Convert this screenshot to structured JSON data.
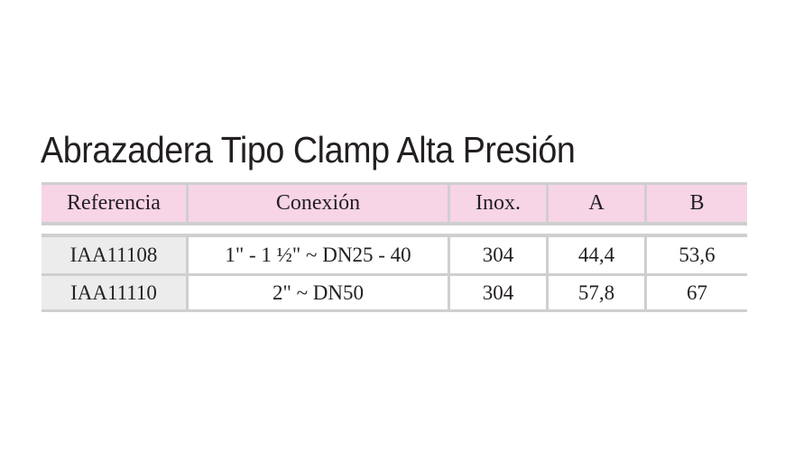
{
  "title": "Abrazadera Tipo Clamp Alta Presión",
  "colors": {
    "header_background": "#f7d4e6",
    "reference_background": "#ececec",
    "border": "#cfcfcf",
    "text": "#231f20"
  },
  "table": {
    "headers": [
      "Referencia",
      "Conexión",
      "Inox.",
      "A",
      "B"
    ],
    "rows": [
      [
        "IAA11108",
        "1\" - 1 ½\" ~ DN25 - 40",
        "304",
        "44,4",
        "53,6"
      ],
      [
        "IAA11110",
        "2\" ~ DN50",
        "304",
        "57,8",
        "67"
      ]
    ]
  }
}
